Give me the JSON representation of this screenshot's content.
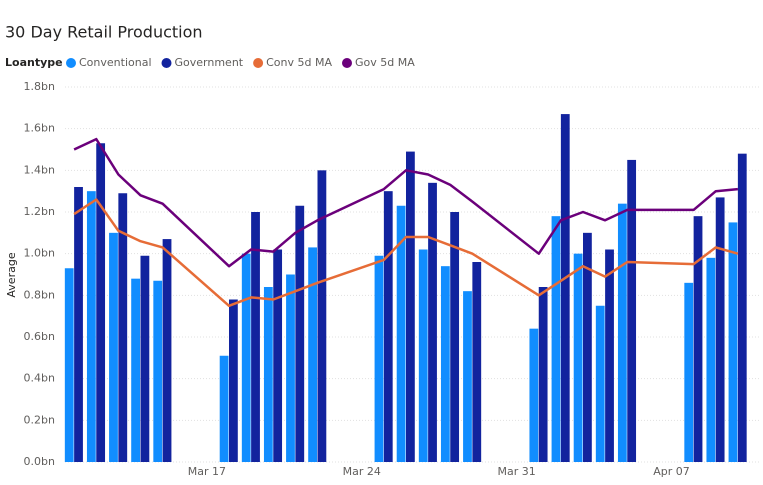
{
  "chart_data": {
    "type": "combo",
    "title": "30 Day Retail Production",
    "legend_title": "Loantype",
    "y_label": "Average",
    "x": [
      "Mar 11",
      "Mar 12",
      "Mar 13",
      "Mar 14",
      "Mar 15",
      "Mar 18",
      "Mar 19",
      "Mar 20",
      "Mar 21",
      "Mar 22",
      "Mar 25",
      "Mar 26",
      "Mar 27",
      "Mar 28",
      "Mar 29",
      "Apr 01",
      "Apr 02",
      "Apr 03",
      "Apr 04",
      "Apr 05",
      "Apr 08",
      "Apr 09",
      "Apr 10"
    ],
    "series": [
      {
        "name": "Conventional",
        "type": "bar",
        "color": "#118DFF",
        "values": [
          0.93,
          1.3,
          1.1,
          0.88,
          0.87,
          0.51,
          1.0,
          0.84,
          0.9,
          1.03,
          0.99,
          1.23,
          1.02,
          0.94,
          0.82,
          0.64,
          1.18,
          1.0,
          0.75,
          1.24,
          0.86,
          0.98,
          1.15
        ]
      },
      {
        "name": "Government",
        "type": "bar",
        "color": "#12239E",
        "values": [
          1.32,
          1.53,
          1.29,
          0.99,
          1.07,
          0.78,
          1.2,
          1.02,
          1.23,
          1.4,
          1.3,
          1.49,
          1.34,
          1.2,
          0.96,
          0.84,
          1.67,
          1.1,
          1.02,
          1.45,
          1.18,
          1.27,
          1.48
        ]
      },
      {
        "name": "Conv 5d MA",
        "type": "line",
        "color": "#E66C37",
        "values": [
          1.19,
          1.26,
          1.11,
          1.06,
          1.03,
          0.75,
          0.79,
          0.78,
          0.82,
          0.86,
          0.97,
          1.08,
          1.08,
          1.04,
          1.0,
          0.8,
          0.87,
          0.94,
          0.89,
          0.96,
          0.95,
          1.03,
          1.0
        ]
      },
      {
        "name": "Gov 5d MA",
        "type": "line",
        "color": "#6B007B",
        "values": [
          1.5,
          1.55,
          1.38,
          1.28,
          1.24,
          0.94,
          1.02,
          1.01,
          1.1,
          1.16,
          1.31,
          1.4,
          1.38,
          1.33,
          1.25,
          1.0,
          1.16,
          1.2,
          1.16,
          1.21,
          1.21,
          1.3,
          1.31
        ]
      }
    ],
    "xlim": [
      "Mar 10",
      "Apr 11"
    ],
    "xticks": [
      "Mar 17",
      "Mar 24",
      "Mar 31",
      "Apr 07"
    ],
    "ylim": [
      0,
      1.8
    ],
    "yticks": [
      {
        "value": 0,
        "label": "0.0bn"
      },
      {
        "value": 0.2,
        "label": "0.2bn"
      },
      {
        "value": 0.4,
        "label": "0.4bn"
      },
      {
        "value": 0.6,
        "label": "0.6bn"
      },
      {
        "value": 0.8,
        "label": "0.8bn"
      },
      {
        "value": 1.0,
        "label": "1.0bn"
      },
      {
        "value": 1.2,
        "label": "1.2bn"
      },
      {
        "value": 1.4,
        "label": "1.4bn"
      },
      {
        "value": 1.6,
        "label": "1.6bn"
      },
      {
        "value": 1.8,
        "label": "1.8bn"
      }
    ],
    "grid": true
  }
}
